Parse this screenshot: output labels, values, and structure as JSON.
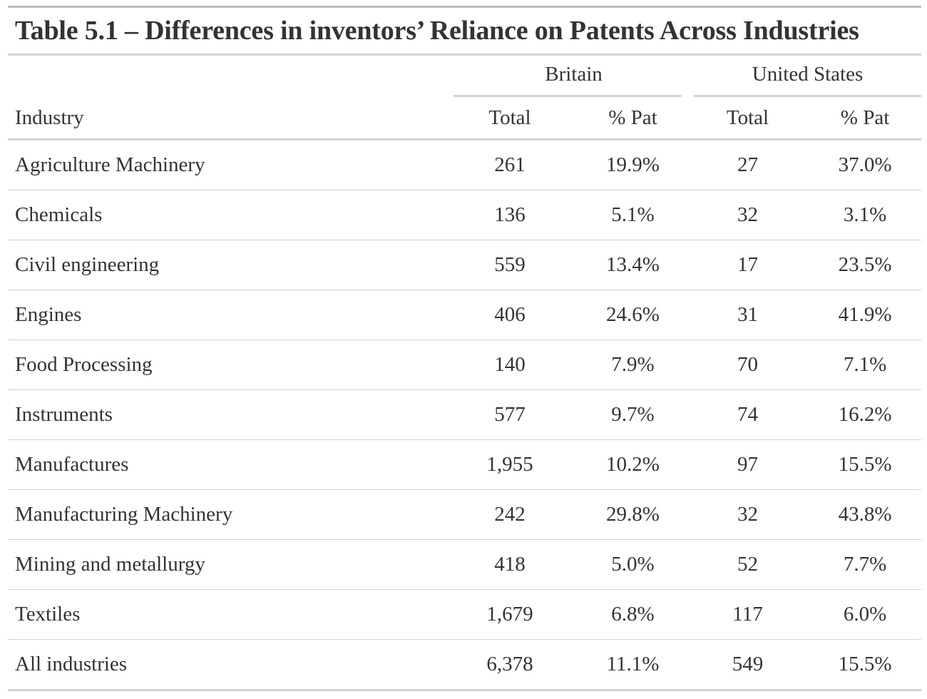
{
  "table": {
    "title": "Table 5.1 – Differences in inventors’ Reliance on Patents Across Industries",
    "spanners": {
      "britain": "Britain",
      "united_states": "United States"
    },
    "columns": {
      "industry": "Industry",
      "britain_total": "Total",
      "britain_pct": "% Pat",
      "us_total": "Total",
      "us_pct": "% Pat"
    },
    "rows": [
      {
        "industry": "Agriculture Machinery",
        "britain_total": "261",
        "britain_pct": "19.9%",
        "us_total": "27",
        "us_pct": "37.0%"
      },
      {
        "industry": "Chemicals",
        "britain_total": "136",
        "britain_pct": "5.1%",
        "us_total": "32",
        "us_pct": "3.1%"
      },
      {
        "industry": "Civil engineering",
        "britain_total": "559",
        "britain_pct": "13.4%",
        "us_total": "17",
        "us_pct": "23.5%"
      },
      {
        "industry": "Engines",
        "britain_total": "406",
        "britain_pct": "24.6%",
        "us_total": "31",
        "us_pct": "41.9%"
      },
      {
        "industry": "Food Processing",
        "britain_total": "140",
        "britain_pct": "7.9%",
        "us_total": "70",
        "us_pct": "7.1%"
      },
      {
        "industry": "Instruments",
        "britain_total": "577",
        "britain_pct": "9.7%",
        "us_total": "74",
        "us_pct": "16.2%"
      },
      {
        "industry": "Manufactures",
        "britain_total": "1,955",
        "britain_pct": "10.2%",
        "us_total": "97",
        "us_pct": "15.5%"
      },
      {
        "industry": "Manufacturing Machinery",
        "britain_total": "242",
        "britain_pct": "29.8%",
        "us_total": "32",
        "us_pct": "43.8%"
      },
      {
        "industry": "Mining and metallurgy",
        "britain_total": "418",
        "britain_pct": "5.0%",
        "us_total": "52",
        "us_pct": "7.7%"
      },
      {
        "industry": "Textiles",
        "britain_total": "1,679",
        "britain_pct": "6.8%",
        "us_total": "117",
        "us_pct": "6.0%"
      },
      {
        "industry": "All industries",
        "britain_total": "6,378",
        "britain_pct": "11.1%",
        "us_total": "549",
        "us_pct": "15.5%"
      }
    ]
  }
}
